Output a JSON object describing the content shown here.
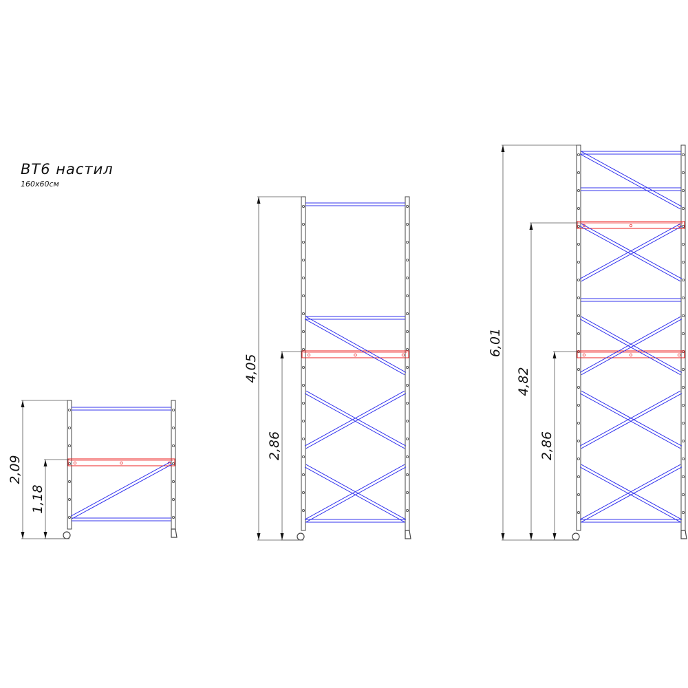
{
  "title": "ВТ6 настил",
  "subtitle": "160x60см",
  "colors": {
    "frame": "#3333ee",
    "deck": "#ee2222",
    "post": "#444444",
    "dimension": "#555555"
  },
  "towers": [
    {
      "name": "tower-1",
      "dimensions": [
        "2,09",
        "1,18"
      ]
    },
    {
      "name": "tower-2",
      "dimensions": [
        "4,05",
        "2,86"
      ]
    },
    {
      "name": "tower-3",
      "dimensions": [
        "6,01",
        "4,82",
        "2,86"
      ]
    }
  ]
}
